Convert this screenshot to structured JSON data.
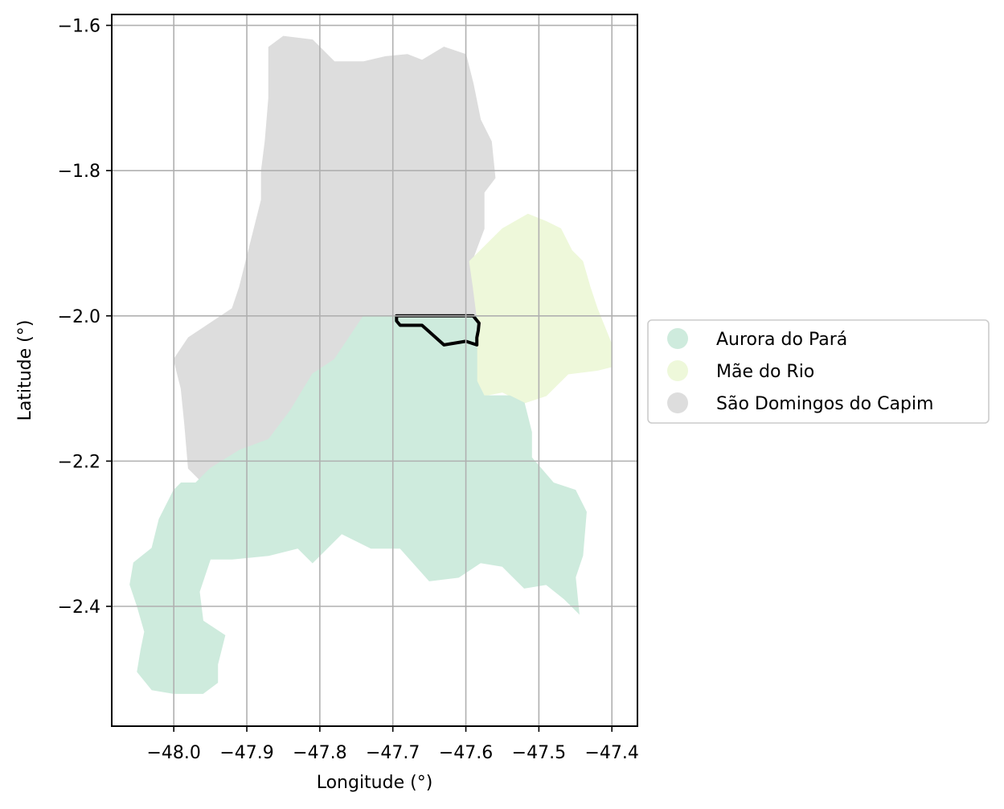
{
  "chart_data": {
    "type": "choropleth-map",
    "title": "",
    "xlabel": "Longitude (°)",
    "ylabel": "Latitude (°)",
    "xlim": [
      -48.085,
      -47.365
    ],
    "ylim": [
      -2.565,
      -1.585
    ],
    "xticks": [
      -48.0,
      -47.9,
      -47.8,
      -47.7,
      -47.6,
      -47.5,
      -47.4
    ],
    "xtick_labels": [
      "−48.0",
      "−47.9",
      "−47.8",
      "−47.7",
      "−47.6",
      "−47.5",
      "−47.4"
    ],
    "yticks": [
      -1.6,
      -1.8,
      -2.0,
      -2.2,
      -2.4
    ],
    "ytick_labels": [
      "−1.6",
      "−1.8",
      "−2.0",
      "−2.2",
      "−2.4"
    ],
    "grid": true,
    "legend_placement": "right-outside",
    "regions": [
      {
        "name": "São Domingos do Capim",
        "color": "#dddddd",
        "polygon": [
          [
            -47.87,
            -1.63
          ],
          [
            -47.85,
            -1.615
          ],
          [
            -47.81,
            -1.62
          ],
          [
            -47.78,
            -1.65
          ],
          [
            -47.74,
            -1.65
          ],
          [
            -47.71,
            -1.643
          ],
          [
            -47.68,
            -1.64
          ],
          [
            -47.66,
            -1.648
          ],
          [
            -47.63,
            -1.63
          ],
          [
            -47.6,
            -1.64
          ],
          [
            -47.59,
            -1.68
          ],
          [
            -47.58,
            -1.73
          ],
          [
            -47.565,
            -1.76
          ],
          [
            -47.56,
            -1.81
          ],
          [
            -47.575,
            -1.83
          ],
          [
            -47.575,
            -1.88
          ],
          [
            -47.59,
            -1.92
          ],
          [
            -47.585,
            -1.96
          ],
          [
            -47.585,
            -2.0
          ],
          [
            -47.74,
            -2.0
          ],
          [
            -47.76,
            -2.03
          ],
          [
            -47.78,
            -2.06
          ],
          [
            -47.81,
            -2.08
          ],
          [
            -47.84,
            -2.13
          ],
          [
            -47.87,
            -2.17
          ],
          [
            -47.91,
            -2.185
          ],
          [
            -47.95,
            -2.21
          ],
          [
            -47.965,
            -2.225
          ],
          [
            -47.98,
            -2.21
          ],
          [
            -47.985,
            -2.15
          ],
          [
            -47.99,
            -2.1
          ],
          [
            -48.0,
            -2.06
          ],
          [
            -47.98,
            -2.03
          ],
          [
            -47.95,
            -2.01
          ],
          [
            -47.92,
            -1.99
          ],
          [
            -47.91,
            -1.96
          ],
          [
            -47.9,
            -1.92
          ],
          [
            -47.89,
            -1.88
          ],
          [
            -47.88,
            -1.84
          ],
          [
            -47.88,
            -1.8
          ],
          [
            -47.875,
            -1.76
          ],
          [
            -47.87,
            -1.7
          ],
          [
            -47.87,
            -1.66
          ]
        ]
      },
      {
        "name": "Mãe do Rio",
        "color": "#eef8da",
        "polygon": [
          [
            -47.585,
            -2.0
          ],
          [
            -47.59,
            -1.96
          ],
          [
            -47.595,
            -1.925
          ],
          [
            -47.57,
            -1.9
          ],
          [
            -47.55,
            -1.88
          ],
          [
            -47.515,
            -1.86
          ],
          [
            -47.49,
            -1.87
          ],
          [
            -47.47,
            -1.88
          ],
          [
            -47.455,
            -1.91
          ],
          [
            -47.44,
            -1.925
          ],
          [
            -47.43,
            -1.96
          ],
          [
            -47.42,
            -1.99
          ],
          [
            -47.4,
            -2.04
          ],
          [
            -47.4,
            -2.07
          ],
          [
            -47.42,
            -2.075
          ],
          [
            -47.46,
            -2.08
          ],
          [
            -47.49,
            -2.11
          ],
          [
            -47.52,
            -2.12
          ],
          [
            -47.55,
            -2.105
          ],
          [
            -47.575,
            -2.11
          ],
          [
            -47.585,
            -2.09
          ],
          [
            -47.585,
            -2.04
          ]
        ]
      },
      {
        "name": "Aurora do Pará",
        "color": "#ceebdd",
        "polygon": [
          [
            -47.74,
            -2.0
          ],
          [
            -47.585,
            -2.0
          ],
          [
            -47.585,
            -2.04
          ],
          [
            -47.585,
            -2.09
          ],
          [
            -47.575,
            -2.11
          ],
          [
            -47.54,
            -2.11
          ],
          [
            -47.52,
            -2.12
          ],
          [
            -47.51,
            -2.16
          ],
          [
            -47.51,
            -2.195
          ],
          [
            -47.48,
            -2.23
          ],
          [
            -47.45,
            -2.24
          ],
          [
            -47.435,
            -2.27
          ],
          [
            -47.44,
            -2.33
          ],
          [
            -47.45,
            -2.36
          ],
          [
            -47.445,
            -2.41
          ],
          [
            -47.465,
            -2.39
          ],
          [
            -47.49,
            -2.37
          ],
          [
            -47.52,
            -2.375
          ],
          [
            -47.55,
            -2.345
          ],
          [
            -47.58,
            -2.34
          ],
          [
            -47.61,
            -2.36
          ],
          [
            -47.65,
            -2.365
          ],
          [
            -47.69,
            -2.32
          ],
          [
            -47.73,
            -2.32
          ],
          [
            -47.77,
            -2.3
          ],
          [
            -47.81,
            -2.34
          ],
          [
            -47.83,
            -2.32
          ],
          [
            -47.87,
            -2.33
          ],
          [
            -47.92,
            -2.335
          ],
          [
            -47.95,
            -2.335
          ],
          [
            -47.965,
            -2.38
          ],
          [
            -47.96,
            -2.42
          ],
          [
            -47.93,
            -2.44
          ],
          [
            -47.94,
            -2.48
          ],
          [
            -47.94,
            -2.505
          ],
          [
            -47.96,
            -2.52
          ],
          [
            -48.0,
            -2.52
          ],
          [
            -48.03,
            -2.515
          ],
          [
            -48.05,
            -2.49
          ],
          [
            -48.045,
            -2.46
          ],
          [
            -48.04,
            -2.435
          ],
          [
            -48.05,
            -2.4
          ],
          [
            -48.06,
            -2.37
          ],
          [
            -48.055,
            -2.34
          ],
          [
            -48.03,
            -2.32
          ],
          [
            -48.02,
            -2.28
          ],
          [
            -48.0,
            -2.24
          ],
          [
            -47.99,
            -2.23
          ],
          [
            -47.97,
            -2.23
          ],
          [
            -47.95,
            -2.21
          ],
          [
            -47.91,
            -2.185
          ],
          [
            -47.87,
            -2.17
          ],
          [
            -47.84,
            -2.13
          ],
          [
            -47.81,
            -2.08
          ],
          [
            -47.78,
            -2.06
          ],
          [
            -47.76,
            -2.03
          ]
        ]
      }
    ],
    "highlight_outline": {
      "color": "#000000",
      "polygon": [
        [
          -47.695,
          -2.0
        ],
        [
          -47.59,
          -2.0
        ],
        [
          -47.582,
          -2.01
        ],
        [
          -47.583,
          -2.02
        ],
        [
          -47.585,
          -2.03
        ],
        [
          -47.585,
          -2.04
        ],
        [
          -47.6,
          -2.035
        ],
        [
          -47.63,
          -2.04
        ],
        [
          -47.66,
          -2.013
        ],
        [
          -47.69,
          -2.013
        ],
        [
          -47.695,
          -2.007
        ]
      ]
    },
    "legend": [
      {
        "label": "Aurora do Pará",
        "color": "#ceebdd"
      },
      {
        "label": "Mãe do Rio",
        "color": "#eef8da"
      },
      {
        "label": "São Domingos do Capim",
        "color": "#dddddd"
      }
    ]
  }
}
